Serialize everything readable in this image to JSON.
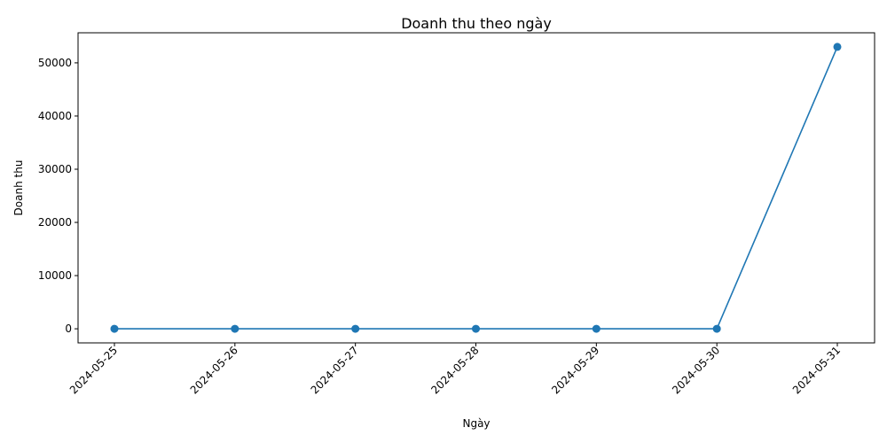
{
  "chart_data": {
    "type": "line",
    "title": "Doanh thu theo ngày",
    "xlabel": "Ngày",
    "ylabel": "Doanh thu",
    "categories": [
      "2024-05-25",
      "2024-05-26",
      "2024-05-27",
      "2024-05-28",
      "2024-05-29",
      "2024-05-30",
      "2024-05-31"
    ],
    "series": [
      {
        "values": [
          0,
          0,
          0,
          0,
          0,
          0,
          53000
        ],
        "color": "#1f77b4"
      }
    ],
    "yticks": [
      0,
      10000,
      20000,
      30000,
      40000,
      50000
    ],
    "ylim": [
      -2650,
      55650
    ],
    "grid": false,
    "markers": "circle",
    "xtick_rotation": 45
  }
}
